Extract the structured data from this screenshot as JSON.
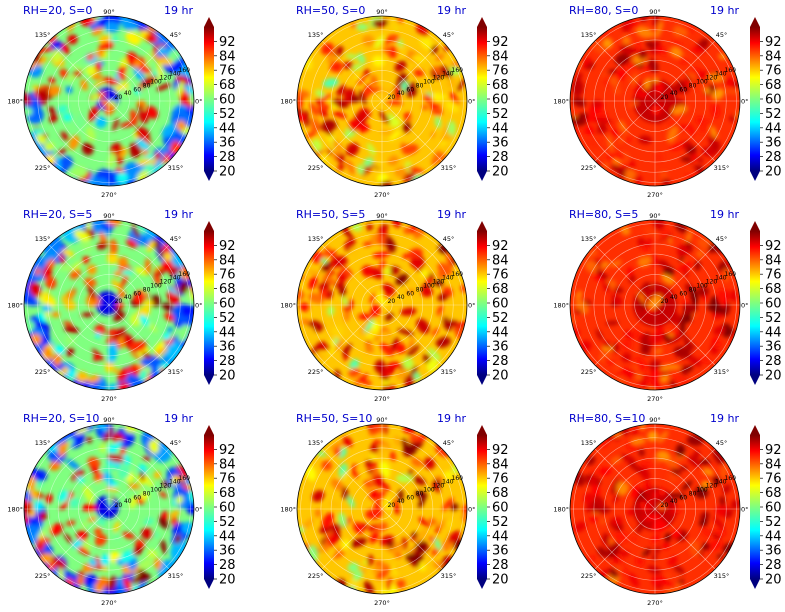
{
  "figure": {
    "background": "#ffffff",
    "title_color": "#0000cc"
  },
  "chart_data": [
    {
      "type": "heatmap",
      "projection": "polar",
      "title_left": "RH=20, S=0",
      "title_right": "19 hr",
      "humidity": 20,
      "speed": 0
    },
    {
      "type": "heatmap",
      "projection": "polar",
      "title_left": "RH=50, S=0",
      "title_right": "19 hr",
      "humidity": 50,
      "speed": 0
    },
    {
      "type": "heatmap",
      "projection": "polar",
      "title_left": "RH=80, S=0",
      "title_right": "19 hr",
      "humidity": 80,
      "speed": 0
    },
    {
      "type": "heatmap",
      "projection": "polar",
      "title_left": "RH=20, S=5",
      "title_right": "19 hr",
      "humidity": 20,
      "speed": 5
    },
    {
      "type": "heatmap",
      "projection": "polar",
      "title_left": "RH=50, S=5",
      "title_right": "19 hr",
      "humidity": 50,
      "speed": 5
    },
    {
      "type": "heatmap",
      "projection": "polar",
      "title_left": "RH=80, S=5",
      "title_right": "19 hr",
      "humidity": 80,
      "speed": 5
    },
    {
      "type": "heatmap",
      "projection": "polar",
      "title_left": "RH=20, S=10",
      "title_right": "19 hr",
      "humidity": 20,
      "speed": 10
    },
    {
      "type": "heatmap",
      "projection": "polar",
      "title_left": "RH=50, S=10",
      "title_right": "19 hr",
      "humidity": 50,
      "speed": 10
    },
    {
      "type": "heatmap",
      "projection": "polar",
      "title_left": "RH=80, S=10",
      "title_right": "19 hr",
      "humidity": 80,
      "speed": 10
    }
  ],
  "angle_ticks": [
    {
      "deg": 0,
      "label": "0°"
    },
    {
      "deg": 45,
      "label": "45°"
    },
    {
      "deg": 90,
      "label": "90°"
    },
    {
      "deg": 135,
      "label": "135°"
    },
    {
      "deg": 180,
      "label": "180°"
    },
    {
      "deg": 225,
      "label": "225°"
    },
    {
      "deg": 270,
      "label": "270°"
    },
    {
      "deg": 315,
      "label": "315°"
    }
  ],
  "radial_ticks": [
    "20",
    "40",
    "60",
    "80",
    "100",
    "120",
    "140",
    "160"
  ],
  "radial_label_angle_deg": 22.5,
  "colorbar": {
    "ticks": [
      "20",
      "28",
      "36",
      "44",
      "52",
      "60",
      "68",
      "76",
      "84",
      "92"
    ],
    "min": 20,
    "max": 100,
    "colormap": "jet",
    "extend": "both"
  }
}
